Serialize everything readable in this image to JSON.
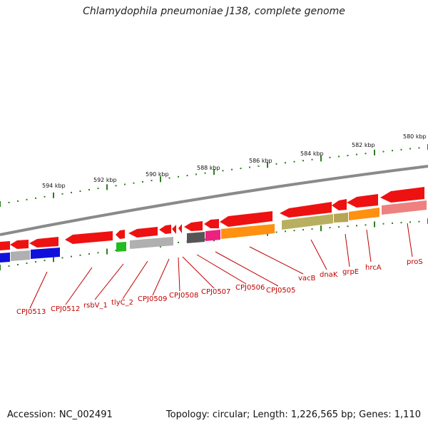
{
  "title": "Chlamydophila pneumoniae J138, complete genome",
  "footer": {
    "accession": "Accession: NC_002491",
    "summary": "Topology: circular; Length: 1,226,565 bp; Genes: 1,110"
  },
  "colors": {
    "backbone": "#8a8a8a",
    "tick": "#2e7d1e",
    "gene_red": "#ee1111",
    "label": "#c00000"
  },
  "ruler": {
    "labels": [
      "580 kbp",
      "582 kbp",
      "584 kbp",
      "586 kbp",
      "588 kbp",
      "590 kbp",
      "592 kbp",
      "594 kbp"
    ]
  },
  "gene_labels": [
    "proS",
    "hrcA",
    "grpE",
    "dnaK",
    "vacB",
    "CPJ0505",
    "CPJ0506",
    "CPJ0507",
    "CPJ0508",
    "CPJ0509",
    "tlyC_2",
    "rsbV_1",
    "CPJ0512",
    "CPJ0513"
  ]
}
